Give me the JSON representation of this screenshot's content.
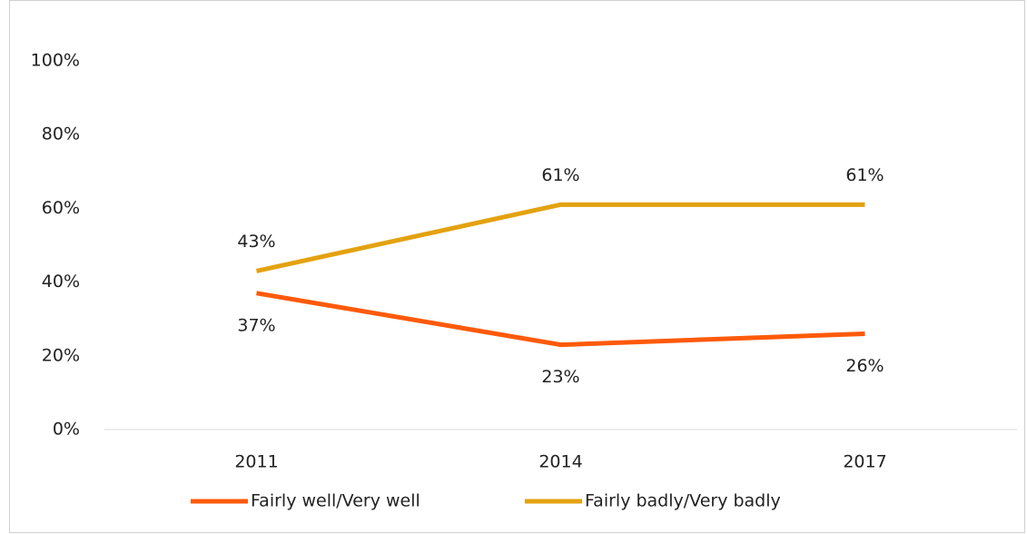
{
  "chart_data": {
    "type": "line",
    "categories": [
      "2011",
      "2014",
      "2017"
    ],
    "series": [
      {
        "name": "Fairly well/Very well",
        "color": "#fe5a0a",
        "values": [
          37,
          23,
          26
        ],
        "value_labels": [
          "37%",
          "23%",
          "26%"
        ]
      },
      {
        "name": "Fairly badly/Very badly",
        "color": "#e3a20f",
        "values": [
          43,
          61,
          61
        ],
        "value_labels": [
          "43%",
          "61%",
          "61%"
        ]
      }
    ],
    "ylim": [
      0,
      100
    ],
    "yticks": [
      {
        "value": 0,
        "label": "0%"
      },
      {
        "value": 20,
        "label": "20%"
      },
      {
        "value": 40,
        "label": "40%"
      },
      {
        "value": 60,
        "label": "60%"
      },
      {
        "value": 80,
        "label": "80%"
      },
      {
        "value": 100,
        "label": "100%"
      }
    ],
    "grid": false,
    "legend": "bottom"
  }
}
